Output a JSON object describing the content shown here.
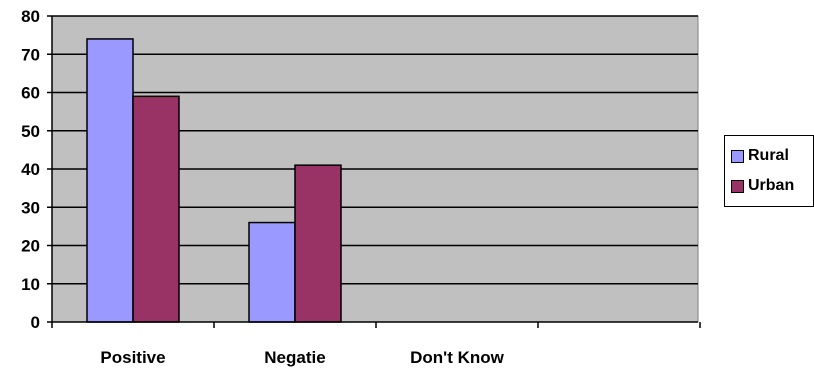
{
  "chart_data": {
    "type": "bar",
    "categories": [
      "Positive",
      "Negatie",
      "Don't Know"
    ],
    "series": [
      {
        "name": "Rural",
        "values": [
          74,
          26,
          0
        ]
      },
      {
        "name": "Urban",
        "values": [
          59,
          41,
          0
        ]
      }
    ],
    "ylim": [
      0,
      80
    ],
    "yticks": [
      0,
      10,
      20,
      30,
      40,
      50,
      60,
      70,
      80
    ],
    "grid": true,
    "legend_position": "right",
    "colors": {
      "Rural": "#9999ff",
      "Urban": "#993366",
      "plot_background": "#c0c0c0",
      "gridline": "#000000"
    }
  }
}
